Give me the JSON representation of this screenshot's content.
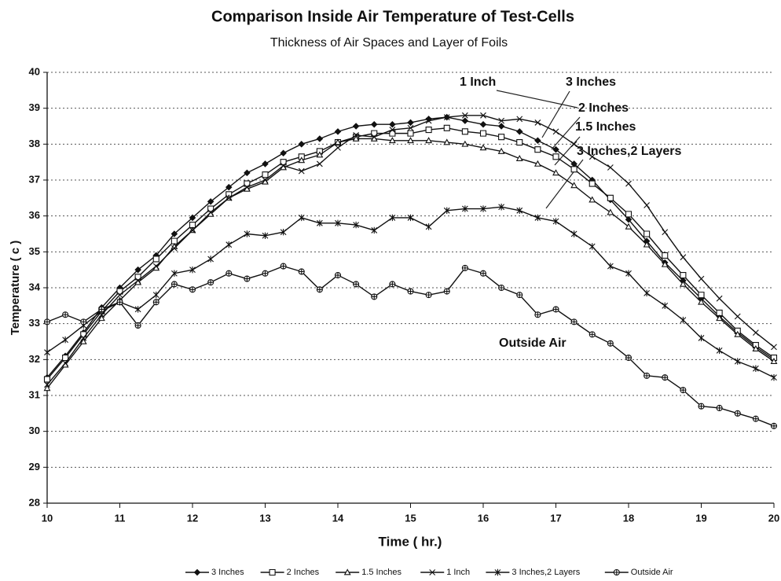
{
  "chart_data": {
    "type": "line",
    "title": "Comparison Inside Air Temperature of Test-Cells",
    "subtitle": "Thickness of Air Spaces and Layer of Foils",
    "x_label": "Time ( hr.)",
    "y_label": "Temperature ( c )",
    "x": [
      10,
      10.25,
      10.5,
      10.75,
      11,
      11.25,
      11.5,
      11.75,
      12,
      12.25,
      12.5,
      12.75,
      13,
      13.25,
      13.5,
      13.75,
      14,
      14.25,
      14.5,
      14.75,
      15,
      15.25,
      15.5,
      15.75,
      16,
      16.25,
      16.5,
      16.75,
      17,
      17.25,
      17.5,
      17.75,
      18,
      18.25,
      18.5,
      18.75,
      19,
      19.25,
      19.5,
      19.75,
      20
    ],
    "xlim": [
      10,
      20
    ],
    "xticks": [
      10,
      11,
      12,
      13,
      14,
      15,
      16,
      17,
      18,
      19,
      20
    ],
    "ylim": [
      28,
      40
    ],
    "yticks": [
      28,
      29,
      30,
      31,
      32,
      33,
      34,
      35,
      36,
      37,
      38,
      39,
      40
    ],
    "grid": true,
    "legend": "bottom",
    "series": [
      {
        "name": "3 Inches",
        "color": "#111111",
        "marker": "diamond",
        "values": [
          31.5,
          32.1,
          32.75,
          33.45,
          34.0,
          34.5,
          34.9,
          35.5,
          35.95,
          36.4,
          36.8,
          37.2,
          37.45,
          37.75,
          38.0,
          38.15,
          38.35,
          38.5,
          38.55,
          38.55,
          38.6,
          38.7,
          38.75,
          38.65,
          38.55,
          38.5,
          38.35,
          38.1,
          37.85,
          37.45,
          37.0,
          36.45,
          35.9,
          35.3,
          34.7,
          34.2,
          33.7,
          33.2,
          32.75,
          32.35,
          32.0
        ]
      },
      {
        "name": "2 Inches",
        "color": "#111111",
        "marker": "square",
        "values": [
          31.45,
          32.05,
          32.7,
          33.35,
          33.9,
          34.3,
          34.8,
          35.3,
          35.75,
          36.2,
          36.6,
          36.9,
          37.15,
          37.5,
          37.65,
          37.8,
          38.05,
          38.2,
          38.3,
          38.3,
          38.3,
          38.4,
          38.45,
          38.35,
          38.3,
          38.2,
          38.05,
          37.85,
          37.65,
          37.3,
          36.9,
          36.5,
          36.05,
          35.5,
          34.9,
          34.35,
          33.8,
          33.3,
          32.8,
          32.4,
          32.05
        ]
      },
      {
        "name": "1.5 Inches",
        "color": "#111111",
        "marker": "triangle",
        "values": [
          31.2,
          31.85,
          32.5,
          33.15,
          33.65,
          34.15,
          34.55,
          35.15,
          35.6,
          36.05,
          36.5,
          36.75,
          36.95,
          37.35,
          37.55,
          37.7,
          38.05,
          38.15,
          38.15,
          38.1,
          38.1,
          38.1,
          38.05,
          38.0,
          37.9,
          37.8,
          37.6,
          37.45,
          37.2,
          36.85,
          36.45,
          36.1,
          35.7,
          35.2,
          34.65,
          34.1,
          33.6,
          33.15,
          32.7,
          32.3,
          31.95
        ]
      },
      {
        "name": "1 Inch",
        "color": "#111111",
        "marker": "x",
        "values": [
          31.3,
          31.9,
          32.6,
          33.25,
          33.8,
          34.2,
          34.6,
          35.1,
          35.6,
          36.1,
          36.5,
          36.8,
          37.0,
          37.4,
          37.25,
          37.45,
          37.9,
          38.25,
          38.2,
          38.4,
          38.45,
          38.65,
          38.75,
          38.8,
          38.8,
          38.65,
          38.7,
          38.6,
          38.35,
          38.0,
          37.65,
          37.35,
          36.9,
          36.3,
          35.55,
          34.85,
          34.25,
          33.7,
          33.2,
          32.75,
          32.35
        ]
      },
      {
        "name": "3 Inches,2 Layers",
        "color": "#111111",
        "marker": "star",
        "values": [
          32.2,
          32.55,
          32.95,
          33.35,
          33.6,
          33.4,
          33.8,
          34.4,
          34.5,
          34.8,
          35.2,
          35.5,
          35.45,
          35.55,
          35.95,
          35.8,
          35.8,
          35.75,
          35.6,
          35.95,
          35.95,
          35.7,
          36.15,
          36.2,
          36.2,
          36.25,
          36.15,
          35.95,
          35.85,
          35.5,
          35.15,
          34.6,
          34.4,
          33.85,
          33.5,
          33.1,
          32.6,
          32.25,
          31.95,
          31.75,
          31.5
        ]
      },
      {
        "name": "Outside Air",
        "color": "#111111",
        "marker": "circleplus",
        "values": [
          33.05,
          33.25,
          33.05,
          33.4,
          33.6,
          32.95,
          33.6,
          34.1,
          33.95,
          34.15,
          34.4,
          34.25,
          34.4,
          34.6,
          34.45,
          33.95,
          34.35,
          34.1,
          33.75,
          34.1,
          33.9,
          33.8,
          33.9,
          34.55,
          34.4,
          34.0,
          33.8,
          33.25,
          33.4,
          33.05,
          32.7,
          32.45,
          32.05,
          31.55,
          31.5,
          31.15,
          30.7,
          30.65,
          30.5,
          30.35,
          30.15
        ]
      }
    ],
    "annotations": [
      "1 Inch",
      "3 Inches",
      "2 Inches",
      "1.5 Inches",
      "3 Inches,2 Layers",
      "Outside Air"
    ]
  }
}
